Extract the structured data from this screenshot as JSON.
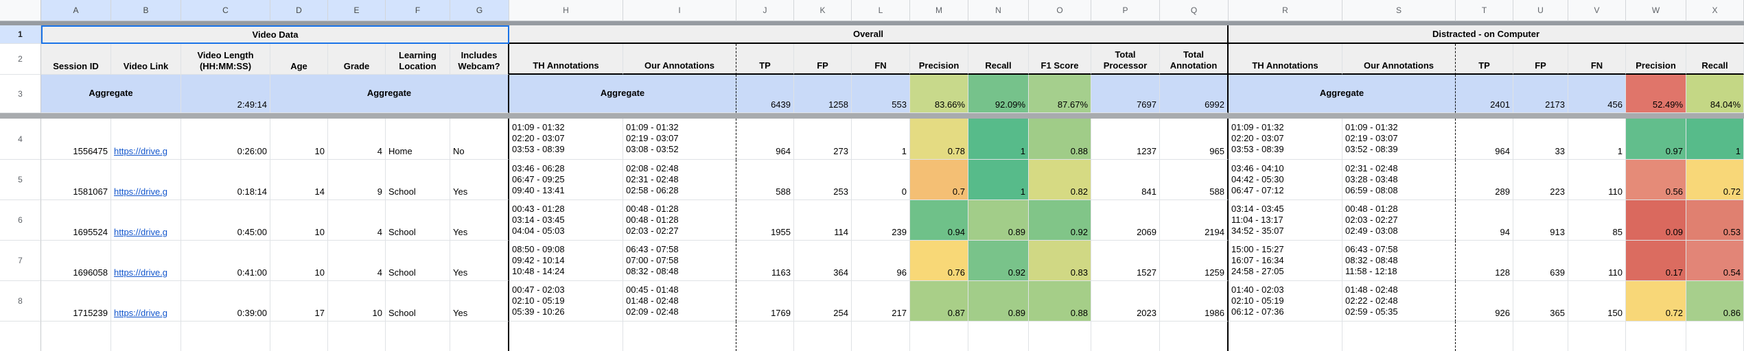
{
  "colors": {
    "selection_blue": "#1a73e8",
    "selected_header_bg": "#d3e3fd",
    "frozen_row_bg": "#c9daf8",
    "header_cell_bg": "#efefef",
    "link_blue": "#1155cc"
  },
  "col_letters": [
    "A",
    "B",
    "C",
    "D",
    "E",
    "F",
    "G",
    "H",
    "I",
    "J",
    "K",
    "L",
    "M",
    "N",
    "O",
    "P",
    "Q",
    "R",
    "S",
    "T",
    "U",
    "V",
    "W",
    "X"
  ],
  "row1": {
    "num": "1",
    "video_title": "Video Data",
    "overall_title": "Overall",
    "distracted_title": "Distracted - on Computer"
  },
  "row2": {
    "num": "2",
    "video_headers": [
      "Session ID",
      "Video Link",
      "Video Length\n(HH:MM:SS)",
      "Age",
      "Grade",
      "Learning\nLocation",
      "Includes\nWebcam?"
    ],
    "overall_headers": [
      "TH Annotations",
      "Our Annotations",
      "TP",
      "FP",
      "FN",
      "Precision",
      "Recall",
      "F1 Score",
      "Total\nProcessor",
      "Total\nAnnotation"
    ],
    "distracted_headers": [
      "TH Annotations",
      "Our Annotations",
      "TP",
      "FP",
      "FN",
      "Precision",
      "Recall"
    ]
  },
  "aggregate": {
    "num": "3",
    "video_label": "Aggregate",
    "video_length": "2:49:14",
    "meta_label": "Aggregate",
    "overall": {
      "label": "Aggregate",
      "tp": "6439",
      "fp": "1258",
      "fn": "553",
      "precision": {
        "text": "83.66%",
        "bg": "#c8d98b"
      },
      "recall": {
        "text": "92.09%",
        "bg": "#76c28b"
      },
      "f1": {
        "text": "87.67%",
        "bg": "#a5cf8d"
      },
      "total_processor": "7697",
      "total_annotation": "6992"
    },
    "distracted": {
      "label": "Aggregate",
      "tp": "2401",
      "fp": "2173",
      "fn": "456",
      "precision": {
        "text": "52.49%",
        "bg": "#e0756a"
      },
      "recall": {
        "text": "84.04%",
        "bg": "#c4d785"
      }
    }
  },
  "rows": [
    {
      "num": "4",
      "session_id": "1556475",
      "video_link": "https://drive.g",
      "video_length": "0:26:00",
      "age": "10",
      "grade": "4",
      "location": "Home",
      "webcam": "No",
      "overall": {
        "th": "01:09 - 01:32\n02:20 - 03:07\n03:53 - 08:39",
        "ours": "01:09 - 01:32\n02:19 - 03:07\n03:08 - 03:52",
        "tp": "964",
        "fp": "273",
        "fn": "1",
        "precision": {
          "text": "0.78",
          "bg": "#e4db82"
        },
        "recall": {
          "text": "1",
          "bg": "#57bb8a"
        },
        "f1": {
          "text": "0.88",
          "bg": "#a0cc88"
        },
        "total_processor": "1237",
        "total_annotation": "965"
      },
      "distracted": {
        "th": "01:09 - 01:32\n02:20 - 03:07\n03:53 - 08:39",
        "ours": "01:09 - 01:32\n02:19 - 03:07\n03:52 - 08:39",
        "tp": "964",
        "fp": "33",
        "fn": "1",
        "precision": {
          "text": "0.97",
          "bg": "#62be8c"
        },
        "recall": {
          "text": "1",
          "bg": "#57bb8a"
        }
      }
    },
    {
      "num": "5",
      "session_id": "1581067",
      "video_link": "https://drive.g",
      "video_length": "0:18:14",
      "age": "14",
      "grade": "9",
      "location": "School",
      "webcam": "Yes",
      "overall": {
        "th": "03:46 - 06:28\n06:47 - 09:25\n09:40 - 13:41",
        "ours": "02:08 - 02:48\n02:31 - 02:48\n02:58 - 06:28",
        "tp": "588",
        "fp": "253",
        "fn": "0",
        "precision": {
          "text": "0.7",
          "bg": "#f4bf74"
        },
        "recall": {
          "text": "1",
          "bg": "#57bb8a"
        },
        "f1": {
          "text": "0.82",
          "bg": "#d6da83"
        },
        "total_processor": "841",
        "total_annotation": "588"
      },
      "distracted": {
        "th": "03:46 - 04:10\n04:42 - 05:30\n06:47 - 07:12",
        "ours": "02:31 - 02:48\n03:28 - 03:48\n06:59 - 08:08",
        "tp": "289",
        "fp": "223",
        "fn": "110",
        "precision": {
          "text": "0.56",
          "bg": "#e58b78"
        },
        "recall": {
          "text": "0.72",
          "bg": "#f8d778"
        }
      }
    },
    {
      "num": "6",
      "session_id": "1695524",
      "video_link": "https://drive.g",
      "video_length": "0:45:00",
      "age": "10",
      "grade": "4",
      "location": "School",
      "webcam": "Yes",
      "overall": {
        "th": "00:43 - 01:28\n03:14 - 03:45\n04:04 - 05:03",
        "ours": "00:48 - 01:28\n00:48 - 01:28\n02:03 - 02:27",
        "tp": "1955",
        "fp": "114",
        "fn": "239",
        "precision": {
          "text": "0.94",
          "bg": "#6fc189"
        },
        "recall": {
          "text": "0.89",
          "bg": "#a2cd89"
        },
        "f1": {
          "text": "0.92",
          "bg": "#81c588"
        },
        "total_processor": "2069",
        "total_annotation": "2194"
      },
      "distracted": {
        "th": "03:14 - 03:45\n11:04 - 13:17\n34:52 - 35:07",
        "ours": "00:48 - 01:28\n02:03 - 02:27\n02:49 - 03:08",
        "tp": "94",
        "fp": "913",
        "fn": "85",
        "precision": {
          "text": "0.09",
          "bg": "#da695e"
        },
        "recall": {
          "text": "0.53",
          "bg": "#e08070"
        }
      }
    },
    {
      "num": "7",
      "session_id": "1696058",
      "video_link": "https://drive.g",
      "video_length": "0:41:00",
      "age": "10",
      "grade": "4",
      "location": "School",
      "webcam": "Yes",
      "overall": {
        "th": "08:50 - 09:08\n09:42 - 10:14\n10:48 - 14:24",
        "ours": "06:43 - 07:58\n07:00 - 07:58\n08:32 - 08:48",
        "tp": "1163",
        "fp": "364",
        "fn": "96",
        "precision": {
          "text": "0.76",
          "bg": "#f8d877"
        },
        "recall": {
          "text": "0.92",
          "bg": "#79c38a"
        },
        "f1": {
          "text": "0.83",
          "bg": "#d0d884"
        },
        "total_processor": "1527",
        "total_annotation": "1259"
      },
      "distracted": {
        "th": "15:00 - 15:27\n16:07 - 16:34\n24:58 - 27:05",
        "ours": "06:43 - 07:58\n08:32 - 08:48\n11:58 - 12:18",
        "tp": "128",
        "fp": "639",
        "fn": "110",
        "precision": {
          "text": "0.17",
          "bg": "#db6c60"
        },
        "recall": {
          "text": "0.54",
          "bg": "#e28577"
        }
      }
    },
    {
      "num": "8",
      "session_id": "1715239",
      "video_link": "https://drive.g",
      "video_length": "0:39:00",
      "age": "17",
      "grade": "10",
      "location": "School",
      "webcam": "Yes",
      "overall": {
        "th": "00:47 - 02:03\n02:10 - 05:19\n05:39 - 10:26",
        "ours": "00:45 - 01:48\n01:48 - 02:48\n02:09 - 02:48",
        "tp": "1769",
        "fp": "254",
        "fn": "217",
        "precision": {
          "text": "0.87",
          "bg": "#a9cf88"
        },
        "recall": {
          "text": "0.89",
          "bg": "#a2cd89"
        },
        "f1": {
          "text": "0.88",
          "bg": "#a5ce88"
        },
        "total_processor": "2023",
        "total_annotation": "1986"
      },
      "distracted": {
        "th": "01:40 - 02:03\n02:10 - 05:19\n06:12 - 07:36",
        "ours": "01:48 - 02:48\n02:22 - 02:48\n02:59 - 05:35",
        "tp": "926",
        "fp": "365",
        "fn": "150",
        "precision": {
          "text": "0.72",
          "bg": "#f8d778"
        },
        "recall": {
          "text": "0.86",
          "bg": "#a7cf8c"
        }
      }
    }
  ]
}
